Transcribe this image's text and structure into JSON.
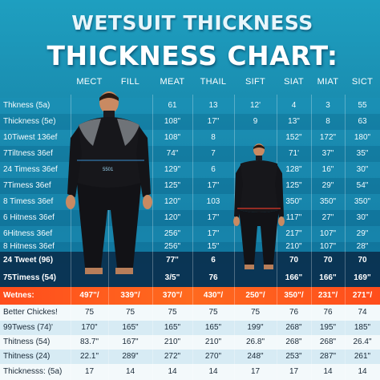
{
  "title_line1": "WETSUIT THICKNESS",
  "title_line2": "THICKNESS CHART:",
  "column_headers": [
    "MECT",
    "FILL",
    "MEAT",
    "THAIL",
    "SIFT",
    "SIAT",
    "MIAT",
    "SICT"
  ],
  "rows": [
    {
      "label": "Thkness (5a)",
      "style": "blue",
      "cells": [
        "",
        "",
        "61",
        "13",
        "12'",
        "4",
        "3",
        "55"
      ]
    },
    {
      "label": "Thickness (5e)",
      "style": "blue alt",
      "cells": [
        "",
        "",
        "108\"",
        "17\"",
        "9",
        "13\"",
        "8",
        "63"
      ]
    },
    {
      "label": "10Tiwest 136ef",
      "style": "blue",
      "cells": [
        "",
        "",
        "108\"",
        "8",
        "",
        "152\"",
        "172\"",
        "180\""
      ]
    },
    {
      "label": "7Tiltness 36ef",
      "style": "blue alt",
      "cells": [
        "",
        "",
        "74\"",
        "7",
        "",
        "71'",
        "37\"",
        "35\""
      ]
    },
    {
      "label": "24 Timess 36ef",
      "style": "blue",
      "cells": [
        "",
        "",
        "129\"",
        "6",
        "",
        "128\"",
        "16\"",
        "30\""
      ]
    },
    {
      "label": "7Timess 36ef",
      "style": "blue alt",
      "cells": [
        "",
        "",
        "125\"",
        "17\"",
        "",
        "125\"",
        "29\"",
        "54\""
      ]
    },
    {
      "label": "8 Timess 36ef",
      "style": "blue",
      "cells": [
        "",
        "",
        "120\"",
        "103",
        "",
        "350\"",
        "350\"",
        "350\""
      ]
    },
    {
      "label": "6 Hitness 36ef",
      "style": "blue alt",
      "cells": [
        "",
        "",
        "120\"",
        "17\"",
        "",
        "117\"",
        "27\"",
        "30\""
      ]
    },
    {
      "label": "6Hitness 36ef",
      "style": "blue",
      "cells": [
        "",
        "",
        "256\"",
        "17\"",
        "",
        "217\"",
        "107\"",
        "29\""
      ]
    },
    {
      "label": "8 Hitness 36ef",
      "style": "blue alt",
      "cells": [
        "",
        "",
        "256\"",
        "15\"",
        "",
        "210\"",
        "107\"",
        "28\""
      ]
    },
    {
      "label": "24 Tweet (96)",
      "style": "dark",
      "cells": [
        "",
        "",
        "77\"",
        "6",
        "",
        "70",
        "70",
        "70"
      ]
    },
    {
      "label": "75Timess (54)",
      "style": "dark",
      "cells": [
        "",
        "",
        "3/5\"",
        "76",
        "",
        "166\"",
        "166\"",
        "169\""
      ]
    },
    {
      "label": "Wetnes:",
      "style": "orange",
      "cells": [
        "497\"/",
        "339\"/",
        "370\"/",
        "430\"/",
        "250\"/",
        "350\"/",
        "231\"/",
        "271\"/"
      ]
    },
    {
      "label": "Better Chickes!",
      "style": "white",
      "cells": [
        "75",
        "75",
        "75",
        "75",
        "75",
        "76",
        "76",
        "74"
      ]
    },
    {
      "label": "99Twess (74)'",
      "style": "white alt",
      "cells": [
        "170\"",
        "165\"",
        "165\"",
        "165\"",
        "199\"",
        "268\"",
        "195\"",
        "185\""
      ]
    },
    {
      "label": "Thitness (54)",
      "style": "white",
      "cells": [
        "83.7\"",
        "167\"",
        "210\"",
        "210\"",
        "26.8\"",
        "268\"",
        "268\"",
        "26.4\""
      ]
    },
    {
      "label": "Thitness (24)",
      "style": "white alt",
      "cells": [
        "22.1\"",
        "289\"",
        "272\"",
        "270\"",
        "248\"",
        "253\"",
        "287\"",
        "261\""
      ]
    },
    {
      "label": "Thicknesss: (5a)",
      "style": "white",
      "cells": [
        "17",
        "14",
        "14",
        "14",
        "17",
        "17",
        "14",
        "14"
      ]
    }
  ],
  "figure_chest_text": "5501",
  "colors": {
    "accent_orange": "#ff5a1e",
    "dark_row": "#082846",
    "bg_blue": "#1884a8"
  }
}
